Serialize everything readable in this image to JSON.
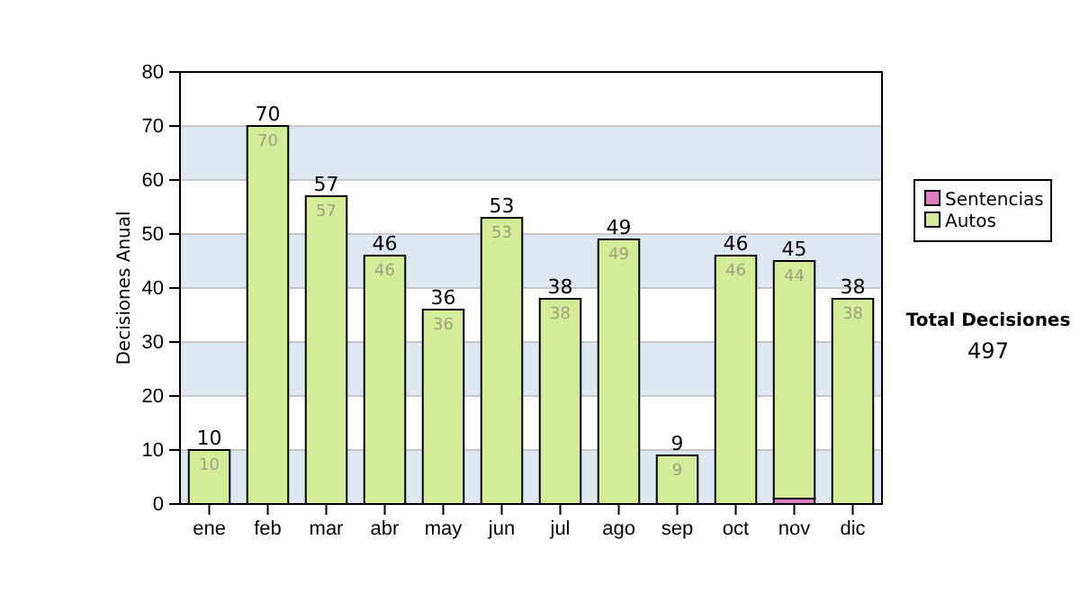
{
  "chart_data": {
    "type": "bar",
    "stacked": true,
    "ylabel": "Decisiones Anual",
    "categories": [
      "ene",
      "feb",
      "mar",
      "abr",
      "may",
      "jun",
      "jul",
      "ago",
      "sep",
      "oct",
      "nov",
      "dic"
    ],
    "series": [
      {
        "name": "Sentencias",
        "color": "#e07cc4",
        "values": [
          0,
          0,
          0,
          0,
          0,
          0,
          0,
          0,
          0,
          0,
          1,
          0
        ]
      },
      {
        "name": "Autos",
        "color": "#d4ec98",
        "values": [
          10,
          70,
          57,
          46,
          36,
          53,
          38,
          49,
          9,
          46,
          44,
          38
        ],
        "value_labels": [
          "10",
          "70",
          "57",
          "46",
          "36",
          "53",
          "38",
          "49",
          "9",
          "46",
          "44",
          "38"
        ]
      }
    ],
    "totals": [
      "10",
      "70",
      "57",
      "46",
      "36",
      "53",
      "38",
      "49",
      "9",
      "46",
      "45",
      "38"
    ],
    "ylim": [
      0,
      80
    ],
    "yticks": [
      0,
      10,
      20,
      30,
      40,
      50,
      60,
      70,
      80
    ],
    "grid": "y",
    "legend": "right",
    "annotations": [
      "Total Decisiones",
      "497"
    ]
  }
}
